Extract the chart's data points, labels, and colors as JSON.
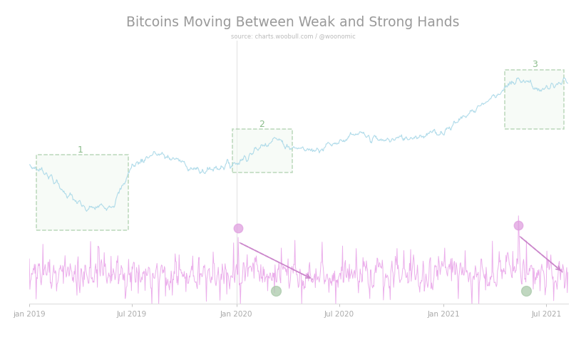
{
  "title": "Bitcoins Moving Between Weak and Strong Hands",
  "subtitle": "source: charts.woobull.com / @woonomic",
  "background_color": "#ffffff",
  "title_color": "#888888",
  "subtitle_color": "#aaaaaa",
  "line_color": "#a8d8e8",
  "oscillator_color": "#e8a0e8",
  "box_fill": "#f0f8f0",
  "box_edge": "#88bb88",
  "label_color": "#88bb88",
  "arrow_color": "#cc88cc",
  "dot_color_green": "#a8c8a8",
  "dot_color_pink": "#e0a0e0",
  "vline_color": "#cccccc",
  "x_tick_labels": [
    "jan 2019",
    "Jul 2019",
    "Jan 2020",
    "Jul 2020",
    "Jan 2021",
    "Jul 2021"
  ],
  "x_tick_positions": [
    0,
    181,
    365,
    546,
    730,
    911
  ],
  "total_days": 950
}
